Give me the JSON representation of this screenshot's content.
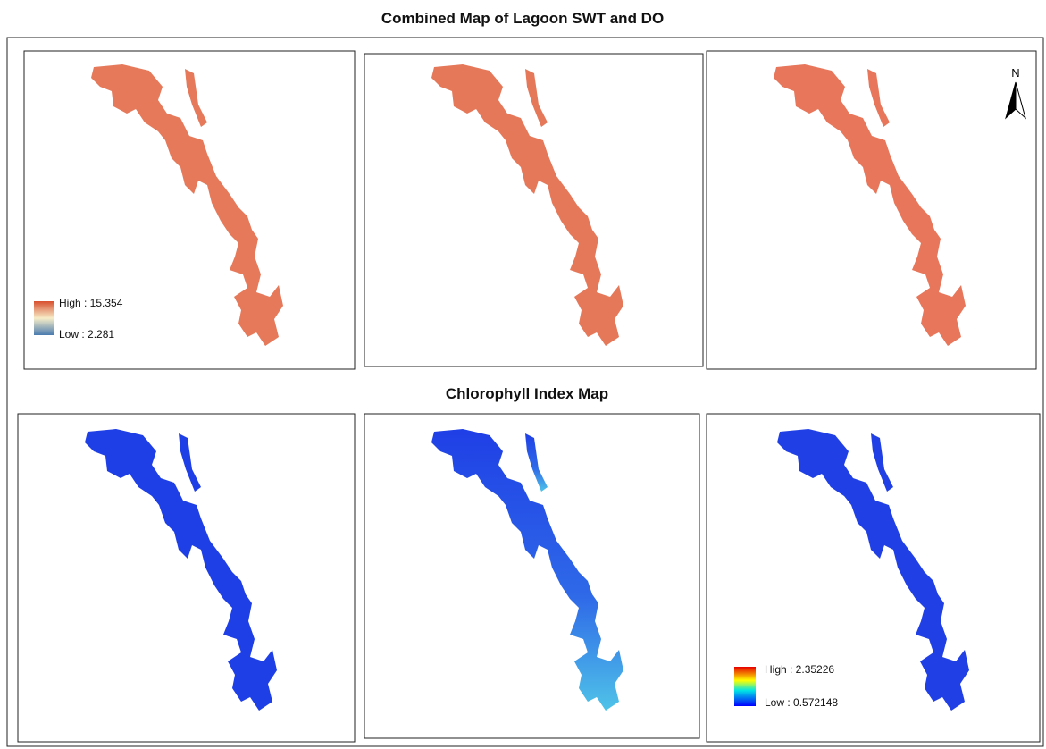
{
  "title": "Combined Map of Lagoon SWT and DO",
  "subtitle": "Chlorophyll Index Map",
  "north_label": "N",
  "swt_legend": {
    "high": "High : 15.354",
    "low": "Low : 2.281"
  },
  "chlorophyll_legend": {
    "high": "High : 2.35226",
    "low": "Low : 0.572148"
  }
}
